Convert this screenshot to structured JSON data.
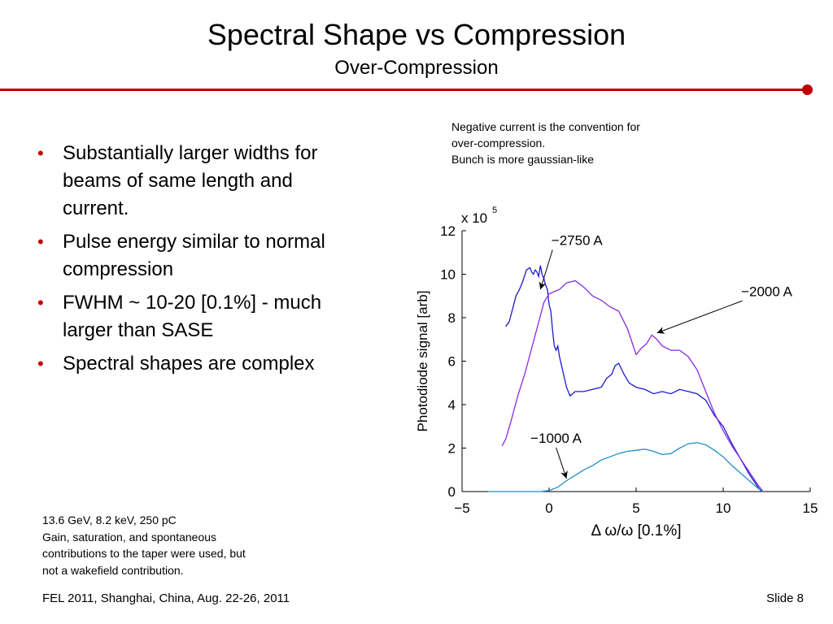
{
  "slide": {
    "title": "Spectral Shape vs Compression",
    "subtitle": "Over-Compression",
    "bullets": [
      "Substantially larger widths for beams of same length and current.",
      "Pulse energy similar to normal compression",
      "FWHM ~ 10-20 [0.1%] - much larger than SASE",
      "Spectral shapes are complex"
    ],
    "note_lines": [
      "Negative current is the convention for",
      "over-compression.",
      "Bunch is more gaussian-like"
    ],
    "footnote_lines": [
      "13.6 GeV, 8.2 keV, 250 pC",
      "Gain, saturation, and spontaneous",
      "contributions to the taper were used, but",
      "not a wakefield contribution."
    ],
    "footer": "FEL 2011, Shanghai, China, Aug. 22-26, 2011",
    "slide_number": "Slide 8",
    "accent_color": "#c00000"
  },
  "chart_data": {
    "type": "line",
    "xlabel": "Δ ω/ω [0.1%]",
    "ylabel": "Photodiode signal [arb]",
    "y_multiplier": "x 10",
    "y_multiplier_exp": "5",
    "xlim": [
      -5,
      15
    ],
    "ylim": [
      0,
      12
    ],
    "x_ticks": [
      -5,
      0,
      5,
      10,
      15
    ],
    "x_tick_labels": [
      "−5",
      "0",
      "5",
      "10",
      "15"
    ],
    "y_ticks": [
      0,
      2,
      4,
      6,
      8,
      10,
      12
    ],
    "y_tick_labels": [
      "0",
      "2",
      "4",
      "6",
      "8",
      "10",
      "12"
    ],
    "grid": false,
    "series": [
      {
        "name": "−2750 A",
        "color": "#1a1acc",
        "x": [
          -2.5,
          -2.3,
          -2.1,
          -1.9,
          -1.7,
          -1.5,
          -1.3,
          -1.1,
          -1.0,
          -0.9,
          -0.8,
          -0.7,
          -0.6,
          -0.5,
          -0.4,
          -0.3,
          -0.2,
          -0.1,
          0.0,
          0.1,
          0.2,
          0.3,
          0.4,
          0.5,
          0.6,
          0.8,
          1.0,
          1.2,
          1.5,
          2.0,
          2.5,
          3.0,
          3.3,
          3.6,
          3.8,
          4.0,
          4.3,
          4.6,
          5.0,
          5.5,
          6.0,
          6.5,
          7.0,
          7.5,
          8.0,
          8.5,
          9.0,
          9.5,
          10.0,
          10.5,
          11.0,
          11.5,
          12.0,
          12.2
        ],
        "y": [
          7.6,
          7.8,
          8.4,
          9.0,
          9.3,
          9.7,
          10.2,
          10.3,
          10.1,
          10.0,
          10.2,
          10.1,
          9.9,
          10.4,
          10.0,
          9.8,
          9.5,
          9.3,
          8.6,
          8.3,
          7.4,
          6.7,
          6.5,
          6.7,
          6.2,
          5.5,
          4.8,
          4.4,
          4.6,
          4.6,
          4.7,
          4.8,
          5.2,
          5.4,
          5.8,
          5.9,
          5.4,
          5.0,
          4.8,
          4.7,
          4.5,
          4.6,
          4.5,
          4.7,
          4.6,
          4.5,
          4.2,
          3.5,
          3.0,
          2.2,
          1.5,
          0.8,
          0.2,
          0.0
        ]
      },
      {
        "name": "−2000 A",
        "color": "#8a2be2",
        "x": [
          -2.7,
          -2.5,
          -2.2,
          -1.8,
          -1.4,
          -1.0,
          -0.6,
          -0.3,
          0.0,
          0.3,
          0.6,
          1.0,
          1.5,
          2.0,
          2.5,
          3.0,
          3.5,
          4.0,
          4.5,
          5.0,
          5.3,
          5.6,
          5.9,
          6.2,
          6.5,
          7.0,
          7.5,
          8.0,
          8.5,
          9.0,
          9.5,
          10.0,
          10.5,
          11.0,
          11.5,
          12.0,
          12.3
        ],
        "y": [
          2.1,
          2.4,
          3.2,
          4.4,
          5.4,
          6.6,
          7.8,
          8.7,
          9.1,
          9.2,
          9.3,
          9.6,
          9.7,
          9.4,
          9.0,
          8.8,
          8.5,
          8.3,
          7.5,
          6.3,
          6.6,
          6.8,
          7.2,
          7.0,
          6.7,
          6.5,
          6.5,
          6.2,
          5.6,
          4.6,
          3.6,
          2.8,
          2.1,
          1.5,
          0.9,
          0.3,
          0.0
        ]
      },
      {
        "name": "−1000 A",
        "color": "#1e90c8",
        "x": [
          -3.5,
          -2.5,
          -1.5,
          -0.5,
          0.0,
          0.5,
          1.0,
          1.5,
          2.0,
          2.5,
          3.0,
          3.5,
          4.0,
          4.5,
          5.0,
          5.5,
          6.0,
          6.5,
          7.0,
          7.5,
          8.0,
          8.5,
          9.0,
          9.5,
          10.0,
          10.5,
          11.0,
          11.5,
          12.0,
          12.3
        ],
        "y": [
          0.0,
          0.0,
          0.0,
          0.0,
          0.05,
          0.2,
          0.5,
          0.75,
          1.0,
          1.2,
          1.45,
          1.6,
          1.75,
          1.85,
          1.9,
          1.95,
          1.85,
          1.7,
          1.75,
          2.0,
          2.2,
          2.25,
          2.15,
          1.9,
          1.6,
          1.2,
          0.85,
          0.5,
          0.15,
          0.0
        ]
      }
    ],
    "annotations": [
      {
        "text": "−2750 A",
        "label_x": 1.6,
        "label_y": 11.35,
        "arrow_x": -0.5,
        "arrow_y": 9.3
      },
      {
        "text": "−2000 A",
        "label_x": 12.5,
        "label_y": 9.0,
        "arrow_x": 6.2,
        "arrow_y": 7.3
      },
      {
        "text": "−1000 A",
        "label_x": 0.4,
        "label_y": 2.25,
        "arrow_x": 1.0,
        "arrow_y": 0.6
      }
    ]
  }
}
